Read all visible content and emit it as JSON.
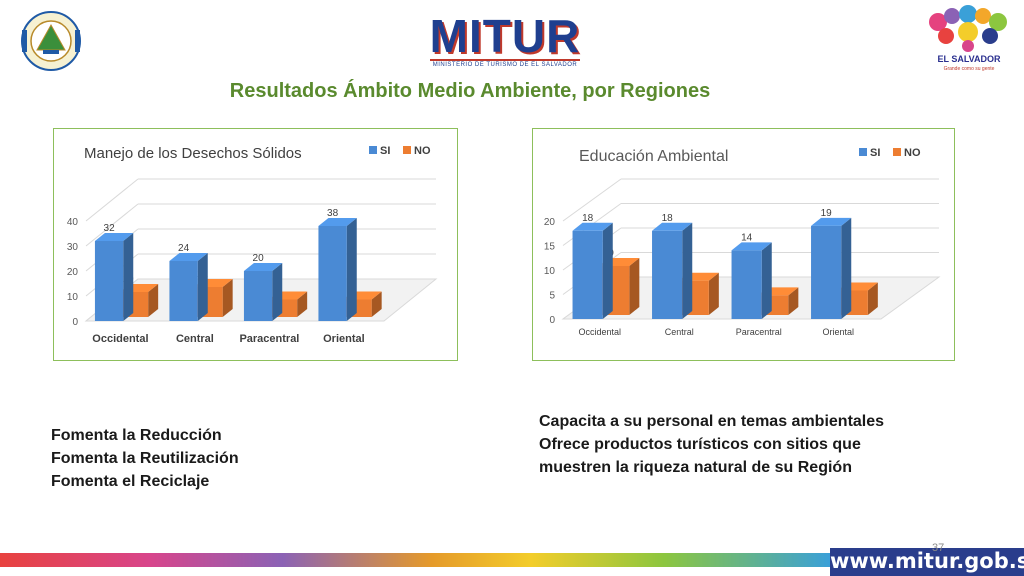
{
  "header": {
    "title": "Resultados Ámbito Medio Ambiente, por Regiones",
    "logo_center_text": "MITUR",
    "logo_center_sub": "MINISTERIO DE TURISMO DE EL SALVADOR",
    "logo_right_text": "EL SALVADOR",
    "logo_right_tag": "Grande como su gente"
  },
  "chart_data": [
    {
      "type": "bar",
      "title": "Manejo de los Desechos Sólidos",
      "categories": [
        "Occidental",
        "Central",
        "Paracentral",
        "Oriental"
      ],
      "series": [
        {
          "name": "SI",
          "values": [
            32,
            24,
            20,
            38
          ]
        },
        {
          "name": "NO",
          "values": [
            10,
            12,
            7,
            7
          ]
        }
      ],
      "ylim": [
        0,
        40
      ],
      "yticks": [
        0,
        10,
        20,
        30,
        40
      ],
      "legend": "top-right",
      "colors": [
        "#4a8ad4",
        "#ed7d31"
      ]
    },
    {
      "type": "bar",
      "title": "Educación Ambiental",
      "categories": [
        "Occidental",
        "Central",
        "Paracentral",
        "Oriental"
      ],
      "series": [
        {
          "name": "SI",
          "values": [
            18,
            18,
            14,
            19
          ]
        },
        {
          "name": "NO",
          "values": [
            10,
            7,
            4,
            5
          ]
        }
      ],
      "ylim": [
        0,
        20
      ],
      "yticks": [
        0,
        5,
        10,
        15,
        20
      ],
      "legend": "top-right",
      "colors": [
        "#4a8ad4",
        "#ed7d31"
      ]
    }
  ],
  "left_text": {
    "line1": "Fomenta la Reducción",
    "line2": "Fomenta la Reutilización",
    "line3": "Fomenta el Reciclaje"
  },
  "right_text": {
    "line1": "Capacita a su personal en temas ambientales",
    "line2": "Ofrece productos turísticos con sitios que",
    "line3": "muestren la riqueza natural de su Región"
  },
  "footer": {
    "url": "www.mitur.gob.sv",
    "page": "37"
  }
}
